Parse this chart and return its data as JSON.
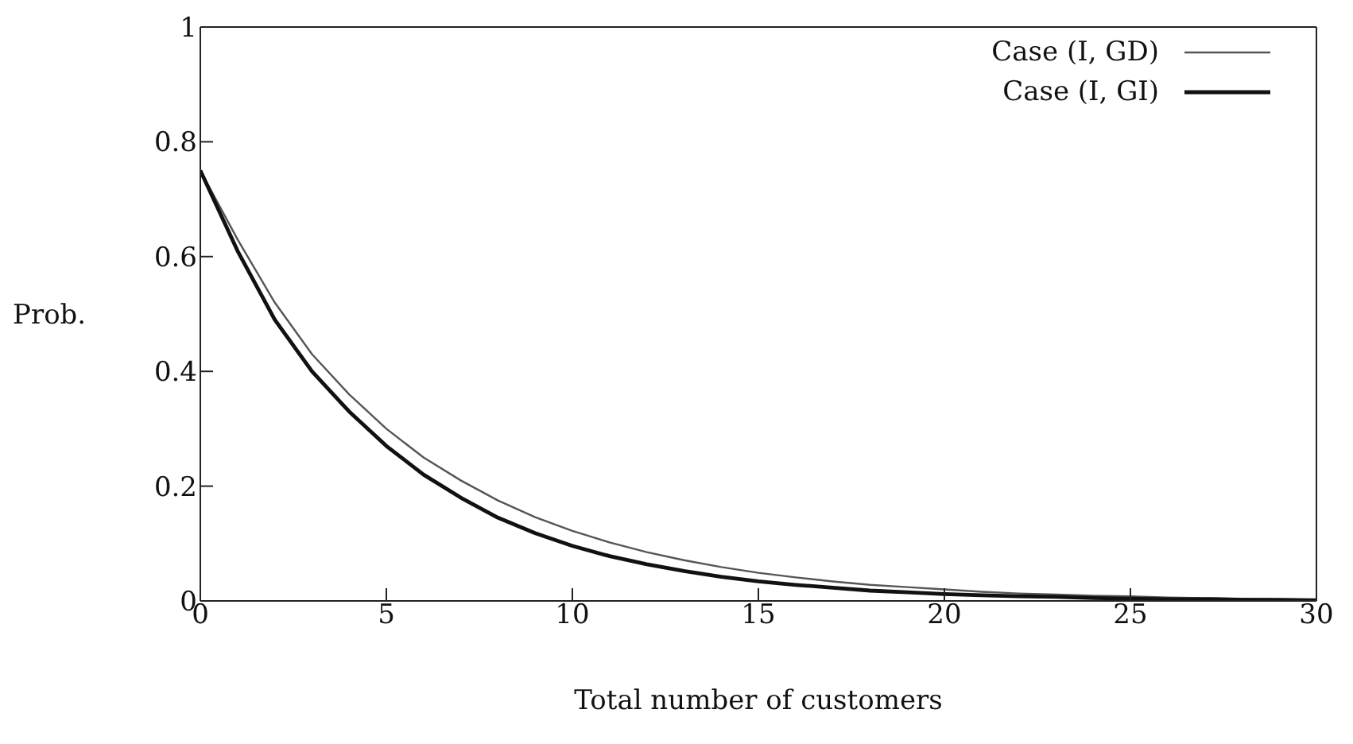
{
  "chart_data": {
    "type": "line",
    "xlabel": "Total number of customers",
    "ylabel": "Prob.",
    "x": [
      0,
      1,
      2,
      3,
      4,
      5,
      6,
      7,
      8,
      9,
      10,
      11,
      12,
      13,
      14,
      15,
      16,
      17,
      18,
      19,
      20,
      21,
      22,
      23,
      24,
      25,
      26,
      27,
      28,
      29,
      30
    ],
    "series": [
      {
        "name": "Case (I, GD)",
        "color": "#555555",
        "values": [
          0.75,
          0.63,
          0.52,
          0.43,
          0.36,
          0.3,
          0.25,
          0.21,
          0.175,
          0.146,
          0.122,
          0.102,
          0.085,
          0.071,
          0.059,
          0.049,
          0.041,
          0.034,
          0.028,
          0.024,
          0.02,
          0.016,
          0.013,
          0.011,
          0.009,
          0.008,
          0.006,
          0.005,
          0.004,
          0.003,
          0.003
        ]
      },
      {
        "name": "Case (I, GI)",
        "color": "#111111",
        "values": [
          0.75,
          0.61,
          0.49,
          0.4,
          0.33,
          0.27,
          0.22,
          0.18,
          0.145,
          0.118,
          0.096,
          0.078,
          0.064,
          0.052,
          0.042,
          0.034,
          0.028,
          0.023,
          0.018,
          0.015,
          0.012,
          0.01,
          0.008,
          0.007,
          0.005,
          0.004,
          0.003,
          0.003,
          0.002,
          0.002,
          0.001
        ]
      }
    ],
    "xlim": [
      0,
      30
    ],
    "xticks": [
      0,
      5,
      10,
      15,
      20,
      25,
      30
    ],
    "ylim": [
      0,
      1
    ],
    "yticks": [
      0,
      {
        "value": 0.2,
        "label": "0.2"
      },
      {
        "value": 0.4,
        "label": "0.4"
      },
      {
        "value": 0.6,
        "label": "0.6"
      },
      {
        "value": 0.8,
        "label": "0.8"
      },
      1
    ],
    "grid": false,
    "legend": "top right",
    "marker": "none",
    "line_style": "solid"
  }
}
